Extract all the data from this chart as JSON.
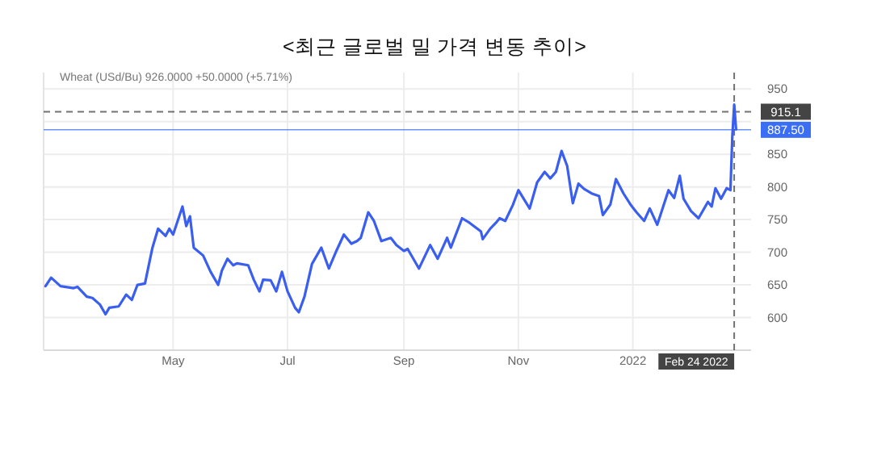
{
  "chart_data": {
    "type": "line",
    "title": "<최근 글로벌 밀 가격 변동 추이>",
    "subtitle": "Wheat (USd/Bu) 926.0000 +50.0000 (+5.71%)",
    "x": [
      "2021-02-22",
      "2021-02-25",
      "2021-03-02",
      "2021-03-09",
      "2021-03-11",
      "2021-03-16",
      "2021-03-19",
      "2021-03-23",
      "2021-03-26",
      "2021-03-28",
      "2021-04-02",
      "2021-04-06",
      "2021-04-09",
      "2021-04-12",
      "2021-04-16",
      "2021-04-20",
      "2021-04-23",
      "2021-04-27",
      "2021-04-29",
      "2021-05-01",
      "2021-05-06",
      "2021-05-08",
      "2021-05-10",
      "2021-05-12",
      "2021-05-17",
      "2021-05-21",
      "2021-05-25",
      "2021-05-27",
      "2021-05-30",
      "2021-06-02",
      "2021-06-04",
      "2021-06-10",
      "2021-06-13",
      "2021-06-16",
      "2021-06-18",
      "2021-06-22",
      "2021-06-25",
      "2021-06-28",
      "2021-07-01",
      "2021-07-05",
      "2021-07-07",
      "2021-07-10",
      "2021-07-14",
      "2021-07-19",
      "2021-07-23",
      "2021-07-27",
      "2021-07-31",
      "2021-08-04",
      "2021-08-07",
      "2021-08-09",
      "2021-08-13",
      "2021-08-16",
      "2021-08-20",
      "2021-08-25",
      "2021-08-28",
      "2021-09-01",
      "2021-09-03",
      "2021-09-09",
      "2021-09-15",
      "2021-09-19",
      "2021-09-24",
      "2021-09-26",
      "2021-10-02",
      "2021-10-06",
      "2021-10-12",
      "2021-10-13",
      "2021-10-17",
      "2021-10-20",
      "2021-10-22",
      "2021-10-25",
      "2021-10-29",
      "2021-11-01",
      "2021-11-07",
      "2021-11-11",
      "2021-11-15",
      "2021-11-18",
      "2021-11-21",
      "2021-11-24",
      "2021-11-27",
      "2021-11-30",
      "2021-12-03",
      "2021-12-06",
      "2021-12-10",
      "2021-12-14",
      "2021-12-16",
      "2021-12-20",
      "2021-12-23",
      "2021-12-27",
      "2021-12-31",
      "2022-01-03",
      "2022-01-07",
      "2022-01-10",
      "2022-01-14",
      "2022-01-20",
      "2022-01-23",
      "2022-01-26",
      "2022-01-28",
      "2022-02-01",
      "2022-02-05",
      "2022-02-10",
      "2022-02-12",
      "2022-02-14",
      "2022-02-17",
      "2022-02-20",
      "2022-02-22",
      "2022-02-23",
      "2022-02-24",
      "2022-02-25"
    ],
    "series": [
      {
        "color": "#3a5ff0",
        "values": [
          648,
          661,
          648,
          645,
          647,
          632,
          630,
          620,
          605,
          615,
          617,
          635,
          627,
          650,
          652,
          707,
          736,
          725,
          736,
          727,
          770,
          740,
          755,
          707,
          695,
          670,
          650,
          672,
          690,
          680,
          683,
          680,
          658,
          640,
          658,
          657,
          640,
          670,
          640,
          615,
          608,
          632,
          682,
          707,
          675,
          702,
          727,
          713,
          717,
          722,
          761,
          748,
          717,
          722,
          711,
          702,
          705,
          675,
          711,
          690,
          722,
          707,
          752,
          745,
          732,
          720,
          736,
          745,
          752,
          748,
          772,
          795,
          767,
          807,
          823,
          813,
          823,
          855,
          832,
          775,
          805,
          797,
          790,
          786,
          757,
          773,
          812,
          790,
          772,
          761,
          748,
          767,
          742,
          795,
          783,
          817,
          782,
          763,
          752,
          777,
          770,
          798,
          782,
          798,
          795,
          877,
          926,
          888
        ]
      }
    ],
    "xlim": [
      "2021-02-21",
      "2022-03-05"
    ],
    "ylim": [
      550,
      975
    ],
    "xticks": [
      {
        "value": "2021-05-01",
        "label": "May"
      },
      {
        "value": "2021-07-01",
        "label": "Jul"
      },
      {
        "value": "2021-09-01",
        "label": "Sep"
      },
      {
        "value": "2021-11-01",
        "label": "Nov"
      },
      {
        "value": "2022-01-01",
        "label": "2022"
      }
    ],
    "yticks": [
      600,
      650,
      700,
      750,
      800,
      850,
      {
        "value": 900,
        "label": null
      },
      950
    ],
    "grid": true,
    "ref_lines": [
      {
        "axis": "y",
        "value": 887.5,
        "label": "887.50",
        "color": "#3a6ff5",
        "line_style": "solid"
      },
      {
        "axis": "y",
        "value": 915.1,
        "label": "915.1",
        "color": "#444444",
        "line_style": "dashed"
      },
      {
        "axis": "x",
        "value": "2022-02-24",
        "label": "Feb 24 2022",
        "color": "#444444",
        "line_style": "dashed"
      }
    ]
  }
}
